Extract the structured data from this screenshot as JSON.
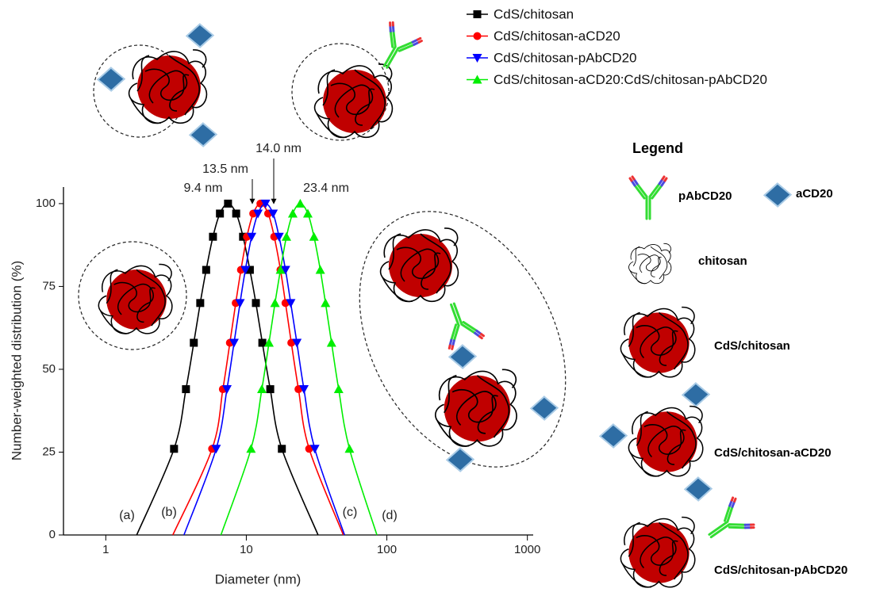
{
  "chart_data": {
    "type": "line",
    "xlabel": "Diameter (nm)",
    "ylabel": "Number-weighted distribution (%)",
    "xscale": "log",
    "xlim": [
      0.5,
      1100
    ],
    "ylim": [
      0,
      105
    ],
    "xticks": [
      1,
      10,
      100,
      1000
    ],
    "yticks": [
      0,
      25,
      50,
      75,
      100
    ],
    "legend": "top-right",
    "series": [
      {
        "name": "CdS/chitosan",
        "color": "#000000",
        "marker": "square",
        "x": [
          1.66,
          3.06,
          3.72,
          4.23,
          4.7,
          5.18,
          5.79,
          6.49,
          7.41,
          8.47,
          9.48,
          10.6,
          11.7,
          13.0,
          14.8,
          17.9,
          32.4
        ],
        "values": [
          0,
          26,
          44,
          58,
          70,
          80,
          90,
          97,
          100,
          97,
          90,
          80,
          70,
          58,
          44,
          26,
          0
        ]
      },
      {
        "name": "CdS/chitosan-aCD20",
        "color": "#ff0000",
        "marker": "circle",
        "x": [
          3.0,
          5.71,
          6.81,
          7.64,
          8.41,
          9.16,
          10.1,
          11.2,
          12.6,
          14.3,
          15.8,
          17.5,
          19.0,
          20.9,
          23.5,
          28.0,
          49
        ],
        "values": [
          0,
          26,
          44,
          58,
          70,
          80,
          90,
          97,
          100,
          97,
          90,
          80,
          70,
          58,
          44,
          26,
          0
        ]
      },
      {
        "name": "CdS/chitosan-pAbCD20",
        "color": "#0000ff",
        "marker": "triangle-down",
        "x": [
          3.6,
          6.1,
          7.28,
          8.18,
          9.02,
          9.84,
          10.9,
          12.1,
          13.7,
          15.5,
          17.1,
          19.0,
          20.7,
          22.9,
          25.7,
          30.7,
          50
        ],
        "values": [
          0,
          26,
          44,
          58,
          70,
          80,
          90,
          97,
          100,
          97,
          90,
          80,
          70,
          58,
          44,
          26,
          0
        ]
      },
      {
        "name": "CdS/chitosan-aCD20:CdS/chitosan-pAbCD20",
        "color": "#00ee00",
        "marker": "triangle-up",
        "x": [
          6.6,
          10.8,
          12.9,
          14.5,
          16.0,
          17.5,
          19.3,
          21.4,
          24.2,
          27.4,
          30.3,
          33.6,
          36.6,
          40.4,
          45.4,
          54.2,
          85
        ],
        "values": [
          0,
          26,
          44,
          58,
          70,
          80,
          90,
          97,
          100,
          97,
          90,
          80,
          70,
          58,
          44,
          26,
          0
        ]
      }
    ],
    "annotations": [
      "9.4 nm",
      "13.5 nm",
      "14.0 nm",
      "23.4 nm"
    ],
    "curve_labels": [
      "(a)",
      "(b)",
      "(c)",
      "(d)"
    ]
  },
  "schematic": {
    "title": "Legend",
    "items": [
      "pAbCD20",
      "aCD20",
      "chitosan",
      "CdS/chitosan",
      "CdS/chitosan-aCD20",
      "CdS/chitosan-pAbCD20"
    ]
  }
}
